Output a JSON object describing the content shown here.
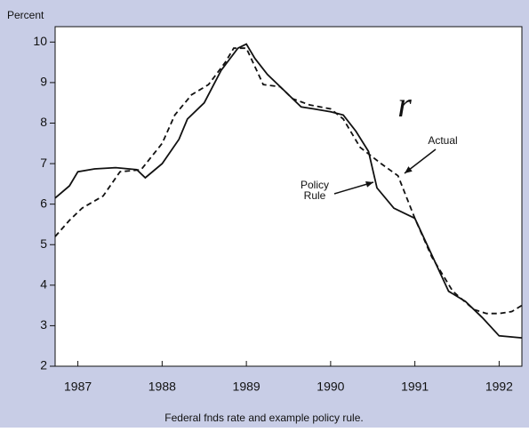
{
  "chart_data": {
    "type": "line",
    "y_label": "Percent",
    "caption": "Federal fnds rate and example policy rule.",
    "annotation": "r",
    "xlim": [
      1986.73,
      1992.27
    ],
    "xticks": [
      1987,
      1988,
      1989,
      1990,
      1991,
      1992
    ],
    "ylim": [
      2,
      10.38
    ],
    "yticks": [
      2,
      3,
      4,
      5,
      6,
      7,
      8,
      9,
      10
    ],
    "series": [
      {
        "name": "Policy Rule",
        "color": "#111111",
        "dash": "solid",
        "x": [
          1986.73,
          1986.9,
          1987.0,
          1987.2,
          1987.45,
          1987.55,
          1987.7,
          1987.8,
          1988.0,
          1988.2,
          1988.3,
          1988.5,
          1988.7,
          1988.9,
          1989.0,
          1989.1,
          1989.25,
          1989.45,
          1989.65,
          1989.8,
          1990.0,
          1990.15,
          1990.3,
          1990.45,
          1990.55,
          1990.75,
          1990.9,
          1991.0,
          1991.2,
          1991.4,
          1991.6,
          1991.8,
          1992.0,
          1992.27
        ],
        "values": [
          6.15,
          6.45,
          6.8,
          6.87,
          6.9,
          6.88,
          6.85,
          6.65,
          7.0,
          7.6,
          8.1,
          8.5,
          9.3,
          9.85,
          9.95,
          9.6,
          9.2,
          8.8,
          8.4,
          8.35,
          8.28,
          8.2,
          7.8,
          7.3,
          6.4,
          5.9,
          5.75,
          5.65,
          4.75,
          3.85,
          3.6,
          3.2,
          2.75,
          2.7
        ]
      },
      {
        "name": "Actual",
        "color": "#111111",
        "dash": "dashed",
        "x": [
          1986.73,
          1986.9,
          1987.05,
          1987.3,
          1987.5,
          1987.75,
          1988.0,
          1988.15,
          1988.35,
          1988.55,
          1988.75,
          1988.85,
          1989.0,
          1989.2,
          1989.4,
          1989.55,
          1989.75,
          1990.0,
          1990.15,
          1990.35,
          1990.6,
          1990.8,
          1991.0,
          1991.2,
          1991.45,
          1991.7,
          1991.85,
          1992.0,
          1992.15,
          1992.27
        ],
        "values": [
          5.2,
          5.6,
          5.9,
          6.2,
          6.8,
          6.85,
          7.5,
          8.2,
          8.7,
          8.95,
          9.5,
          9.85,
          9.85,
          8.95,
          8.9,
          8.6,
          8.45,
          8.35,
          8.1,
          7.4,
          7.0,
          6.7,
          5.65,
          4.7,
          3.85,
          3.4,
          3.3,
          3.3,
          3.35,
          3.5
        ]
      }
    ],
    "background": "#c8cde6"
  }
}
